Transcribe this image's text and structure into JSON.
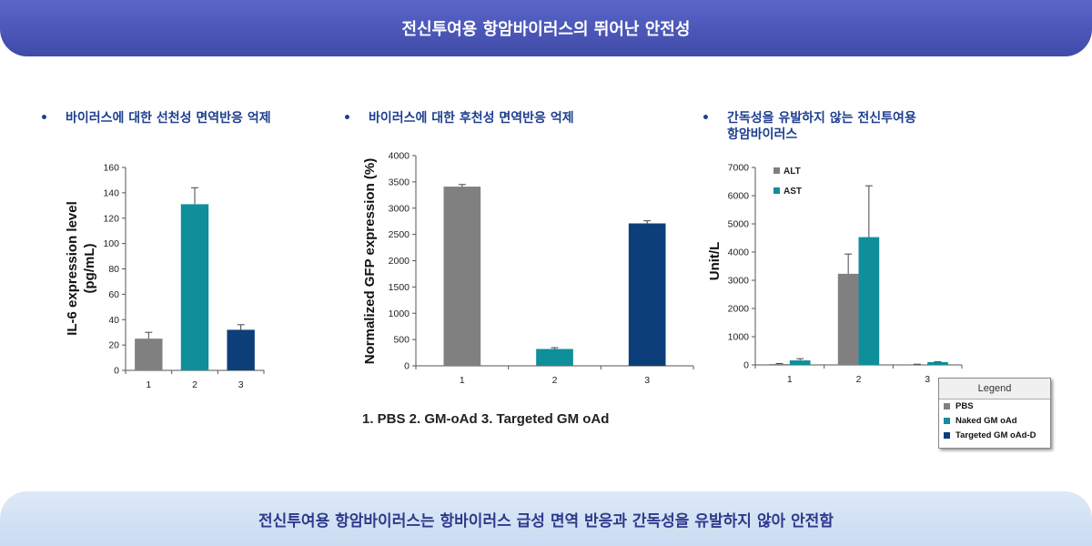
{
  "header": {
    "title": "전신투여용 항암바이러스의 뛰어난 안전성"
  },
  "footer": {
    "text": "전신투여용 항암바이러스는 항바이러스 급성 면역 반응과 간독성을 유발하지 않아 안전함"
  },
  "sections": [
    {
      "bullet": "•",
      "title": "바이러스에 대한 선천성 면역반응 억제"
    },
    {
      "bullet": "•",
      "title": "바이러스에 대한 후천성 면역반응 억제"
    },
    {
      "bullet": "•",
      "title_line1": "간독성을  유발하지  않는  전신투여용",
      "title_line2": "항암바이러스"
    }
  ],
  "caption": "1.  PBS  2. GM-oAd  3. Targeted GM oAd",
  "legend": {
    "title": "Legend",
    "items": [
      {
        "label": "PBS",
        "color": "#808080"
      },
      {
        "label": "Naked GM oAd",
        "color": "#0e8f9a"
      },
      {
        "label": "Targeted GM oAd-D",
        "color": "#0c3f7a"
      }
    ]
  },
  "chart_data": [
    {
      "type": "bar",
      "categories": [
        "1",
        "2",
        "3"
      ],
      "values": [
        25,
        131,
        32
      ],
      "errors": [
        5,
        13,
        4
      ],
      "colors": [
        "#808080",
        "#0e8f9a",
        "#0c3f7a"
      ],
      "ylabel_line1": "IL-6 expression level",
      "ylabel_line2": "(pg/mL)",
      "ylim": [
        0,
        160
      ],
      "yticks": [
        0,
        20,
        40,
        60,
        80,
        100,
        120,
        140,
        160
      ]
    },
    {
      "type": "bar",
      "categories": [
        "1",
        "2",
        "3"
      ],
      "values": [
        3410,
        320,
        2710
      ],
      "errors": [
        40,
        25,
        50
      ],
      "colors": [
        "#808080",
        "#0e8f9a",
        "#0c3f7a"
      ],
      "ylabel": "Normalized GFP expression (%)",
      "ylim": [
        0,
        4000
      ],
      "yticks": [
        0,
        500,
        1000,
        1500,
        2000,
        2500,
        3000,
        3500,
        4000
      ]
    },
    {
      "type": "bar",
      "categories": [
        "1",
        "2",
        "3"
      ],
      "series": [
        {
          "name": "ALT",
          "values": [
            30,
            3230,
            20
          ],
          "errors": [
            20,
            700,
            5
          ],
          "color": "#808080"
        },
        {
          "name": "AST",
          "values": [
            160,
            4530,
            100
          ],
          "errors": [
            60,
            1820,
            10
          ],
          "color": "#0e8f9a"
        }
      ],
      "ylabel": "Unit/L",
      "ylim": [
        0,
        7000
      ],
      "yticks": [
        0,
        1000,
        2000,
        3000,
        4000,
        5000,
        6000,
        7000
      ]
    }
  ]
}
